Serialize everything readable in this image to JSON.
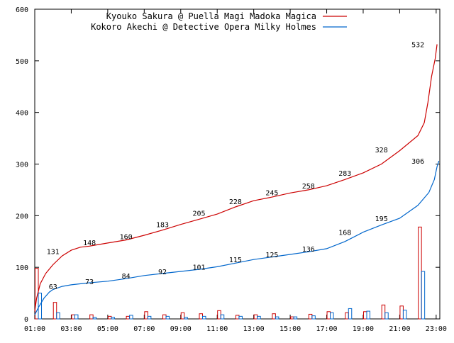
{
  "chart_data": {
    "type": "line",
    "title": "",
    "xlabel": "",
    "ylabel": "",
    "ylim": [
      0,
      600
    ],
    "xlim": [
      1,
      23.2
    ],
    "y_ticks": [
      0,
      100,
      200,
      300,
      400,
      500,
      600
    ],
    "x_ticks": [
      {
        "v": 1,
        "label": "01:00"
      },
      {
        "v": 3,
        "label": "03:00"
      },
      {
        "v": 5,
        "label": "05:00"
      },
      {
        "v": 7,
        "label": "07:00"
      },
      {
        "v": 9,
        "label": "09:00"
      },
      {
        "v": 11,
        "label": "11:00"
      },
      {
        "v": 13,
        "label": "13:00"
      },
      {
        "v": 15,
        "label": "15:00"
      },
      {
        "v": 17,
        "label": "17:00"
      },
      {
        "v": 19,
        "label": "19:00"
      },
      {
        "v": 21,
        "label": "21:00"
      },
      {
        "v": 23,
        "label": "23:00"
      }
    ],
    "grid": false,
    "legend_position": "top-left",
    "series": [
      {
        "name": "Kyouko Sakura @ Puella Magi Madoka Magica",
        "color": "#cc0000",
        "cumulative": [
          [
            1.0,
            15
          ],
          [
            1.1,
            40
          ],
          [
            1.3,
            68
          ],
          [
            1.6,
            88
          ],
          [
            2.0,
            105
          ],
          [
            2.5,
            122
          ],
          [
            3.0,
            133
          ],
          [
            3.5,
            139
          ],
          [
            4.0,
            141
          ],
          [
            5.0,
            147
          ],
          [
            6.0,
            153
          ],
          [
            7.0,
            162
          ],
          [
            8.0,
            172
          ],
          [
            9.0,
            183
          ],
          [
            10.0,
            193
          ],
          [
            11.0,
            203
          ],
          [
            12.0,
            217
          ],
          [
            13.0,
            229
          ],
          [
            14.0,
            236
          ],
          [
            15.0,
            244
          ],
          [
            16.0,
            250
          ],
          [
            17.0,
            258
          ],
          [
            18.0,
            270
          ],
          [
            19.0,
            283
          ],
          [
            20.0,
            300
          ],
          [
            21.0,
            326
          ],
          [
            22.0,
            355
          ],
          [
            22.35,
            380
          ],
          [
            22.55,
            420
          ],
          [
            22.75,
            470
          ],
          [
            22.95,
            505
          ],
          [
            23.05,
            532
          ]
        ],
        "point_labels": [
          {
            "x": 2,
            "y": 131,
            "label": "131"
          },
          {
            "x": 4,
            "y": 148,
            "label": "148"
          },
          {
            "x": 6,
            "y": 160,
            "label": "160"
          },
          {
            "x": 8,
            "y": 183,
            "label": "183"
          },
          {
            "x": 10,
            "y": 205,
            "label": "205"
          },
          {
            "x": 12,
            "y": 228,
            "label": "228"
          },
          {
            "x": 14,
            "y": 245,
            "label": "245"
          },
          {
            "x": 16,
            "y": 258,
            "label": "258"
          },
          {
            "x": 18,
            "y": 283,
            "label": "283"
          },
          {
            "x": 20,
            "y": 328,
            "label": "328"
          },
          {
            "x": 22,
            "y": 532,
            "label": "532"
          }
        ],
        "hourly": [
          98,
          32,
          8,
          8,
          5,
          5,
          14,
          8,
          12,
          10,
          16,
          7,
          8,
          10,
          4,
          9,
          14,
          12,
          14,
          27,
          25,
          178
        ]
      },
      {
        "name": "Kokoro Akechi @ Detective Opera Milky Holmes",
        "color": "#0066cc",
        "cumulative": [
          [
            1.0,
            8
          ],
          [
            1.2,
            22
          ],
          [
            1.5,
            40
          ],
          [
            1.8,
            52
          ],
          [
            2.0,
            57
          ],
          [
            2.5,
            63
          ],
          [
            3.0,
            66
          ],
          [
            4.0,
            70
          ],
          [
            5.0,
            73
          ],
          [
            6.0,
            78
          ],
          [
            7.0,
            84
          ],
          [
            8.0,
            88
          ],
          [
            9.0,
            92
          ],
          [
            10.0,
            96
          ],
          [
            11.0,
            101
          ],
          [
            12.0,
            108
          ],
          [
            13.0,
            115
          ],
          [
            14.0,
            120
          ],
          [
            15.0,
            125
          ],
          [
            16.0,
            130
          ],
          [
            17.0,
            136
          ],
          [
            18.0,
            150
          ],
          [
            19.0,
            168
          ],
          [
            20.0,
            182
          ],
          [
            21.0,
            195
          ],
          [
            22.0,
            220
          ],
          [
            22.6,
            245
          ],
          [
            22.9,
            270
          ],
          [
            23.05,
            295
          ],
          [
            23.15,
            306
          ]
        ],
        "point_labels": [
          {
            "x": 2,
            "y": 63,
            "label": "63"
          },
          {
            "x": 4,
            "y": 73,
            "label": "73"
          },
          {
            "x": 6,
            "y": 84,
            "label": "84"
          },
          {
            "x": 8,
            "y": 92,
            "label": "92"
          },
          {
            "x": 10,
            "y": 101,
            "label": "101"
          },
          {
            "x": 12,
            "y": 115,
            "label": "115"
          },
          {
            "x": 14,
            "y": 125,
            "label": "125"
          },
          {
            "x": 16,
            "y": 136,
            "label": "136"
          },
          {
            "x": 18,
            "y": 168,
            "label": "168"
          },
          {
            "x": 20,
            "y": 195,
            "label": "195"
          },
          {
            "x": 22,
            "y": 306,
            "label": "306"
          }
        ],
        "hourly": [
          50,
          12,
          8,
          3,
          3,
          7,
          5,
          5,
          3,
          5,
          8,
          5,
          5,
          4,
          4,
          6,
          12,
          20,
          15,
          12,
          17,
          92
        ]
      }
    ]
  }
}
